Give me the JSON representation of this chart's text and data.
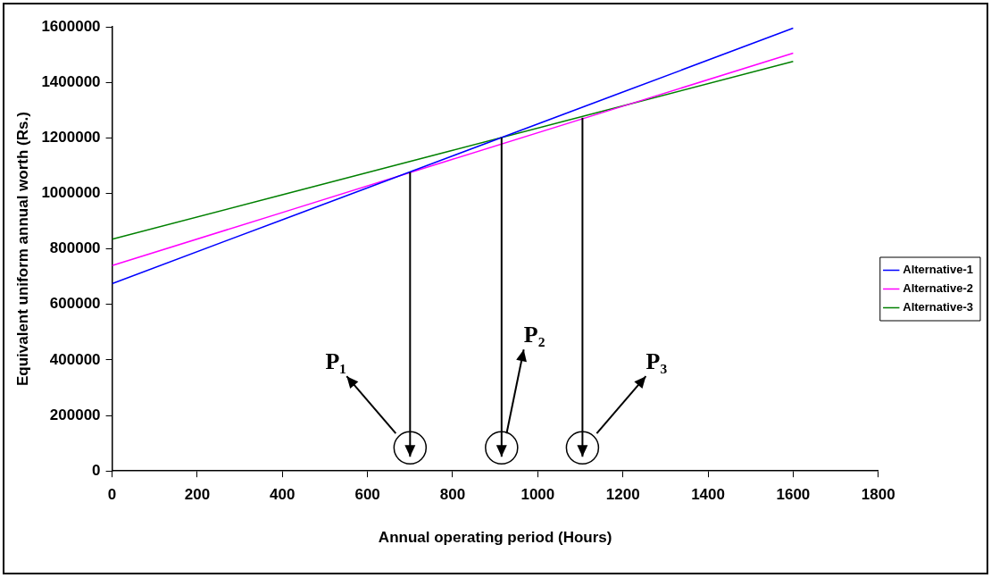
{
  "chart_data": {
    "type": "line",
    "xlabel": "Annual operating period (Hours)",
    "ylabel": "Equivalent uniform annual worth (Rs.)",
    "series": [
      {
        "name": "Alternative-1",
        "color": "#0000ff",
        "values": [
          675000,
          905000,
          1135000,
          1365000,
          1595000
        ]
      },
      {
        "name": "Alternative-2",
        "color": "#ff00ff",
        "values": [
          740000,
          931000,
          1123000,
          1314000,
          1505000
        ]
      },
      {
        "name": "Alternative-3",
        "color": "#008000",
        "values": [
          835000,
          995000,
          1155000,
          1315000,
          1475000
        ]
      }
    ],
    "x": [
      0,
      400,
      800,
      1200,
      1600
    ],
    "xlim": [
      0,
      1800
    ],
    "xticks": [
      0,
      200,
      400,
      600,
      800,
      1000,
      1200,
      1400,
      1600,
      1800
    ],
    "ylim": [
      0,
      1600000
    ],
    "yticks": [
      0,
      200000,
      400000,
      600000,
      800000,
      1000000,
      1200000,
      1400000,
      1600000
    ],
    "grid": false,
    "legend": "right",
    "marker": "none",
    "line_style": "solid",
    "ref_lines": [
      {
        "axis": "x",
        "value": 700,
        "label": "P₁",
        "color": "#000000"
      },
      {
        "axis": "x",
        "value": 915,
        "label": "P₂",
        "color": "#000000"
      },
      {
        "axis": "x",
        "value": 1105,
        "label": "P₃",
        "color": "#000000"
      }
    ]
  }
}
